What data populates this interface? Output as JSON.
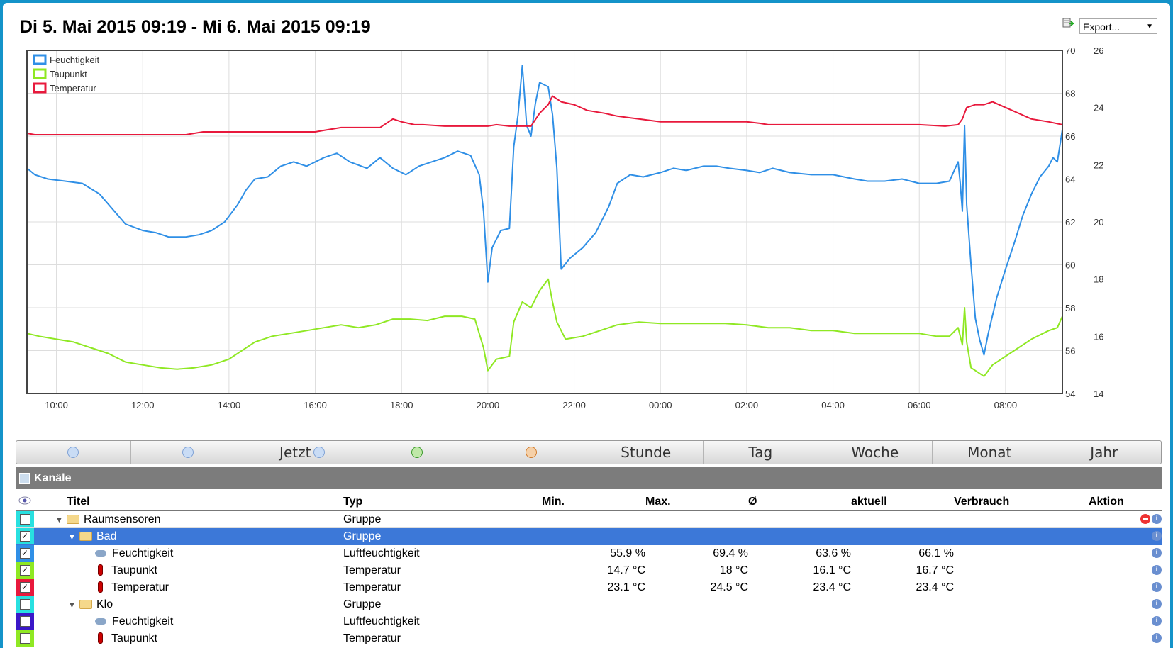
{
  "header": {
    "title": "Di 5. Mai 2015 09:19 - Mi 6. Mai 2015 09:19",
    "export_label": "Export..."
  },
  "chart_data": {
    "type": "line",
    "x_tick_labels": [
      "10:00",
      "12:00",
      "14:00",
      "16:00",
      "18:00",
      "20:00",
      "22:00",
      "00:00",
      "02:00",
      "04:00",
      "06:00",
      "08:00"
    ],
    "x_range_hours": [
      9.317,
      33.317
    ],
    "y_left": {
      "range": [
        54,
        70
      ],
      "ticks": [
        54,
        56,
        58,
        60,
        62,
        64,
        66,
        68,
        70
      ]
    },
    "y_right": {
      "range": [
        14,
        26
      ],
      "ticks": [
        14,
        16,
        18,
        20,
        22,
        24,
        26
      ]
    },
    "grid": true,
    "legend": "top-left",
    "series": [
      {
        "name": "Feuchtigkeit",
        "color": "#2f8fe6",
        "axis": "left",
        "points": [
          [
            9.32,
            64.5
          ],
          [
            9.5,
            64.2
          ],
          [
            9.8,
            64.0
          ],
          [
            10.2,
            63.9
          ],
          [
            10.6,
            63.8
          ],
          [
            11.0,
            63.3
          ],
          [
            11.3,
            62.6
          ],
          [
            11.6,
            61.9
          ],
          [
            12.0,
            61.6
          ],
          [
            12.3,
            61.5
          ],
          [
            12.6,
            61.3
          ],
          [
            13.0,
            61.3
          ],
          [
            13.3,
            61.4
          ],
          [
            13.6,
            61.6
          ],
          [
            13.9,
            62.0
          ],
          [
            14.2,
            62.8
          ],
          [
            14.4,
            63.5
          ],
          [
            14.6,
            64.0
          ],
          [
            14.9,
            64.1
          ],
          [
            15.2,
            64.6
          ],
          [
            15.5,
            64.8
          ],
          [
            15.8,
            64.6
          ],
          [
            16.2,
            65.0
          ],
          [
            16.5,
            65.2
          ],
          [
            16.8,
            64.8
          ],
          [
            17.2,
            64.5
          ],
          [
            17.5,
            65.0
          ],
          [
            17.8,
            64.5
          ],
          [
            18.1,
            64.2
          ],
          [
            18.4,
            64.6
          ],
          [
            18.7,
            64.8
          ],
          [
            19.0,
            65.0
          ],
          [
            19.3,
            65.3
          ],
          [
            19.6,
            65.1
          ],
          [
            19.8,
            64.2
          ],
          [
            19.9,
            62.5
          ],
          [
            20.0,
            59.2
          ],
          [
            20.1,
            60.8
          ],
          [
            20.3,
            61.6
          ],
          [
            20.5,
            61.7
          ],
          [
            20.6,
            65.5
          ],
          [
            20.7,
            67.0
          ],
          [
            20.8,
            69.3
          ],
          [
            20.9,
            66.5
          ],
          [
            21.0,
            66.0
          ],
          [
            21.1,
            67.5
          ],
          [
            21.2,
            68.5
          ],
          [
            21.4,
            68.3
          ],
          [
            21.5,
            67.0
          ],
          [
            21.6,
            64.5
          ],
          [
            21.7,
            59.8
          ],
          [
            21.9,
            60.3
          ],
          [
            22.2,
            60.8
          ],
          [
            22.5,
            61.5
          ],
          [
            22.8,
            62.7
          ],
          [
            23.0,
            63.8
          ],
          [
            23.3,
            64.2
          ],
          [
            23.6,
            64.1
          ],
          [
            24.0,
            64.3
          ],
          [
            24.3,
            64.5
          ],
          [
            24.6,
            64.4
          ],
          [
            25.0,
            64.6
          ],
          [
            25.3,
            64.6
          ],
          [
            25.6,
            64.5
          ],
          [
            26.0,
            64.4
          ],
          [
            26.3,
            64.3
          ],
          [
            26.6,
            64.5
          ],
          [
            27.0,
            64.3
          ],
          [
            27.5,
            64.2
          ],
          [
            28.0,
            64.2
          ],
          [
            28.5,
            64.0
          ],
          [
            28.8,
            63.9
          ],
          [
            29.2,
            63.9
          ],
          [
            29.6,
            64.0
          ],
          [
            30.0,
            63.8
          ],
          [
            30.4,
            63.8
          ],
          [
            30.7,
            63.9
          ],
          [
            30.9,
            64.8
          ],
          [
            30.95,
            63.8
          ],
          [
            31.0,
            62.5
          ],
          [
            31.05,
            66.5
          ],
          [
            31.1,
            62.8
          ],
          [
            31.2,
            60.0
          ],
          [
            31.3,
            57.5
          ],
          [
            31.4,
            56.5
          ],
          [
            31.5,
            55.8
          ],
          [
            31.6,
            56.8
          ],
          [
            31.8,
            58.5
          ],
          [
            32.0,
            59.8
          ],
          [
            32.2,
            61.0
          ],
          [
            32.4,
            62.3
          ],
          [
            32.6,
            63.3
          ],
          [
            32.8,
            64.1
          ],
          [
            33.0,
            64.6
          ],
          [
            33.1,
            65.0
          ],
          [
            33.2,
            64.8
          ],
          [
            33.317,
            66.3
          ]
        ]
      },
      {
        "name": "Taupunkt",
        "color": "#8fe823",
        "axis": "right",
        "points": [
          [
            9.32,
            16.1
          ],
          [
            9.6,
            16.0
          ],
          [
            10.0,
            15.9
          ],
          [
            10.4,
            15.8
          ],
          [
            10.8,
            15.6
          ],
          [
            11.2,
            15.4
          ],
          [
            11.6,
            15.1
          ],
          [
            12.0,
            15.0
          ],
          [
            12.4,
            14.9
          ],
          [
            12.8,
            14.85
          ],
          [
            13.2,
            14.9
          ],
          [
            13.6,
            15.0
          ],
          [
            14.0,
            15.2
          ],
          [
            14.3,
            15.5
          ],
          [
            14.6,
            15.8
          ],
          [
            15.0,
            16.0
          ],
          [
            15.4,
            16.1
          ],
          [
            15.8,
            16.2
          ],
          [
            16.2,
            16.3
          ],
          [
            16.6,
            16.4
          ],
          [
            17.0,
            16.3
          ],
          [
            17.4,
            16.4
          ],
          [
            17.8,
            16.6
          ],
          [
            18.2,
            16.6
          ],
          [
            18.6,
            16.55
          ],
          [
            19.0,
            16.7
          ],
          [
            19.4,
            16.7
          ],
          [
            19.7,
            16.6
          ],
          [
            19.9,
            15.6
          ],
          [
            20.0,
            14.8
          ],
          [
            20.2,
            15.2
          ],
          [
            20.5,
            15.3
          ],
          [
            20.6,
            16.5
          ],
          [
            20.8,
            17.2
          ],
          [
            21.0,
            17.0
          ],
          [
            21.2,
            17.6
          ],
          [
            21.4,
            18.0
          ],
          [
            21.5,
            17.2
          ],
          [
            21.6,
            16.5
          ],
          [
            21.8,
            15.9
          ],
          [
            22.2,
            16.0
          ],
          [
            22.6,
            16.2
          ],
          [
            23.0,
            16.4
          ],
          [
            23.5,
            16.5
          ],
          [
            24.0,
            16.45
          ],
          [
            24.5,
            16.45
          ],
          [
            25.0,
            16.45
          ],
          [
            25.5,
            16.45
          ],
          [
            26.0,
            16.4
          ],
          [
            26.5,
            16.3
          ],
          [
            27.0,
            16.3
          ],
          [
            27.5,
            16.2
          ],
          [
            28.0,
            16.2
          ],
          [
            28.5,
            16.1
          ],
          [
            29.0,
            16.1
          ],
          [
            29.5,
            16.1
          ],
          [
            30.0,
            16.1
          ],
          [
            30.4,
            16.0
          ],
          [
            30.7,
            16.0
          ],
          [
            30.9,
            16.3
          ],
          [
            31.0,
            15.7
          ],
          [
            31.05,
            17.0
          ],
          [
            31.1,
            15.8
          ],
          [
            31.2,
            14.9
          ],
          [
            31.3,
            14.8
          ],
          [
            31.5,
            14.6
          ],
          [
            31.7,
            15.0
          ],
          [
            32.0,
            15.3
          ],
          [
            32.3,
            15.6
          ],
          [
            32.6,
            15.9
          ],
          [
            33.0,
            16.2
          ],
          [
            33.2,
            16.3
          ],
          [
            33.317,
            16.7
          ]
        ]
      },
      {
        "name": "Temperatur",
        "color": "#e8193c",
        "axis": "right",
        "points": [
          [
            9.32,
            23.1
          ],
          [
            9.5,
            23.05
          ],
          [
            10.0,
            23.05
          ],
          [
            11.0,
            23.05
          ],
          [
            12.0,
            23.05
          ],
          [
            13.0,
            23.05
          ],
          [
            13.2,
            23.1
          ],
          [
            13.4,
            23.15
          ],
          [
            14.0,
            23.15
          ],
          [
            15.0,
            23.15
          ],
          [
            16.0,
            23.15
          ],
          [
            16.2,
            23.2
          ],
          [
            16.6,
            23.3
          ],
          [
            17.0,
            23.3
          ],
          [
            17.5,
            23.3
          ],
          [
            17.7,
            23.5
          ],
          [
            17.8,
            23.6
          ],
          [
            18.0,
            23.5
          ],
          [
            18.3,
            23.4
          ],
          [
            18.5,
            23.4
          ],
          [
            19.0,
            23.35
          ],
          [
            19.5,
            23.35
          ],
          [
            20.0,
            23.35
          ],
          [
            20.2,
            23.4
          ],
          [
            20.5,
            23.35
          ],
          [
            21.0,
            23.35
          ],
          [
            21.2,
            23.8
          ],
          [
            21.4,
            24.1
          ],
          [
            21.5,
            24.4
          ],
          [
            21.7,
            24.2
          ],
          [
            22.0,
            24.1
          ],
          [
            22.3,
            23.9
          ],
          [
            22.7,
            23.8
          ],
          [
            23.0,
            23.7
          ],
          [
            23.5,
            23.6
          ],
          [
            24.0,
            23.5
          ],
          [
            25.0,
            23.5
          ],
          [
            26.0,
            23.5
          ],
          [
            26.3,
            23.45
          ],
          [
            26.5,
            23.4
          ],
          [
            27.0,
            23.4
          ],
          [
            28.0,
            23.4
          ],
          [
            29.0,
            23.4
          ],
          [
            30.0,
            23.4
          ],
          [
            30.6,
            23.35
          ],
          [
            30.9,
            23.4
          ],
          [
            31.0,
            23.6
          ],
          [
            31.1,
            24.0
          ],
          [
            31.3,
            24.1
          ],
          [
            31.5,
            24.1
          ],
          [
            31.7,
            24.2
          ],
          [
            32.0,
            24.0
          ],
          [
            32.3,
            23.8
          ],
          [
            32.6,
            23.6
          ],
          [
            33.0,
            23.5
          ],
          [
            33.317,
            23.4
          ]
        ]
      }
    ]
  },
  "toolbar": {
    "jetzt": "Jetzt",
    "stunde": "Stunde",
    "tag": "Tag",
    "woche": "Woche",
    "monat": "Monat",
    "jahr": "Jahr"
  },
  "panel": {
    "title": "Kanäle",
    "columns": {
      "titel": "Titel",
      "typ": "Typ",
      "min": "Min.",
      "max": "Max.",
      "avg": "Ø",
      "aktuell": "aktuell",
      "verbrauch": "Verbrauch",
      "aktion": "Aktion"
    },
    "rows": [
      {
        "color": "#28e0e0",
        "checked": false,
        "indent": 0,
        "icon": "folder",
        "expand": true,
        "title": "Raumsensoren",
        "typ": "Gruppe",
        "min": "",
        "max": "",
        "avg": "",
        "aktuell": "",
        "delete": true
      },
      {
        "color": "#28e0e0",
        "checked": true,
        "indent": 1,
        "icon": "folder",
        "expand": true,
        "title": "Bad",
        "typ": "Gruppe",
        "min": "",
        "max": "",
        "avg": "",
        "aktuell": "",
        "selected": true
      },
      {
        "color": "#2f8fe6",
        "checked": true,
        "indent": 2,
        "icon": "cloud",
        "title": "Feuchtigkeit",
        "typ": "Luftfeuchtigkeit",
        "min": "55.9 %",
        "max": "69.4 %",
        "avg": "63.6 %",
        "aktuell": "66.1 %"
      },
      {
        "color": "#8fe823",
        "checked": true,
        "indent": 2,
        "icon": "therm",
        "title": "Taupunkt",
        "typ": "Temperatur",
        "min": "14.7 °C",
        "max": "18 °C",
        "avg": "16.1 °C",
        "aktuell": "16.7 °C"
      },
      {
        "color": "#e8193c",
        "checked": true,
        "indent": 2,
        "icon": "therm",
        "title": "Temperatur",
        "typ": "Temperatur",
        "min": "23.1 °C",
        "max": "24.5 °C",
        "avg": "23.4 °C",
        "aktuell": "23.4 °C"
      },
      {
        "color": "#28e0e0",
        "checked": false,
        "indent": 1,
        "icon": "folder",
        "expand": true,
        "title": "Klo",
        "typ": "Gruppe",
        "min": "",
        "max": "",
        "avg": "",
        "aktuell": ""
      },
      {
        "color": "#3a18c8",
        "checked": false,
        "indent": 2,
        "icon": "cloud",
        "title": "Feuchtigkeit",
        "typ": "Luftfeuchtigkeit",
        "min": "",
        "max": "",
        "avg": "",
        "aktuell": ""
      },
      {
        "color": "#8fe823",
        "checked": false,
        "indent": 2,
        "icon": "therm",
        "title": "Taupunkt",
        "typ": "Temperatur",
        "min": "",
        "max": "",
        "avg": "",
        "aktuell": ""
      }
    ]
  }
}
